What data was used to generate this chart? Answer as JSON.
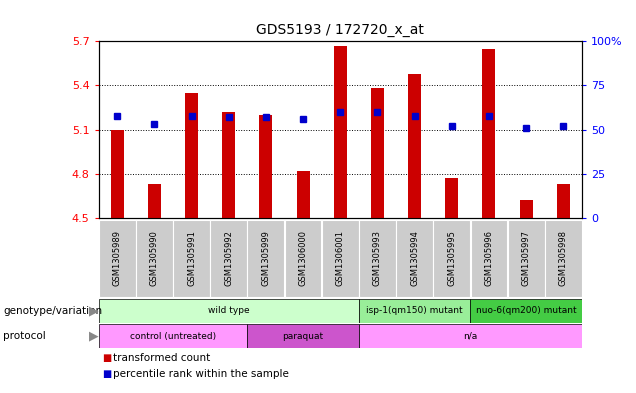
{
  "title": "GDS5193 / 172720_x_at",
  "samples": [
    "GSM1305989",
    "GSM1305990",
    "GSM1305991",
    "GSM1305992",
    "GSM1305999",
    "GSM1306000",
    "GSM1306001",
    "GSM1305993",
    "GSM1305994",
    "GSM1305995",
    "GSM1305996",
    "GSM1305997",
    "GSM1305998"
  ],
  "bar_values": [
    5.1,
    4.73,
    5.35,
    5.22,
    5.2,
    4.82,
    5.67,
    5.38,
    5.48,
    4.77,
    5.65,
    4.62,
    4.73
  ],
  "dot_values": [
    58,
    53,
    58,
    57,
    57,
    56,
    60,
    60,
    58,
    52,
    58,
    51,
    52
  ],
  "ymin": 4.5,
  "ymax": 5.7,
  "yticks": [
    4.5,
    4.8,
    5.1,
    5.4,
    5.7
  ],
  "right_yticks": [
    0,
    25,
    50,
    75,
    100
  ],
  "bar_color": "#cc0000",
  "dot_color": "#0000cc",
  "bar_base": 4.5,
  "genotype_groups": [
    {
      "label": "wild type",
      "start": 0,
      "end": 6,
      "color": "#ccffcc"
    },
    {
      "label": "isp-1(qm150) mutant",
      "start": 7,
      "end": 9,
      "color": "#99ee99"
    },
    {
      "label": "nuo-6(qm200) mutant",
      "start": 10,
      "end": 12,
      "color": "#44cc44"
    }
  ],
  "protocol_groups": [
    {
      "label": "control (untreated)",
      "start": 0,
      "end": 3,
      "color": "#ff99ff"
    },
    {
      "label": "paraquat",
      "start": 4,
      "end": 6,
      "color": "#cc55cc"
    },
    {
      "label": "n/a",
      "start": 7,
      "end": 12,
      "color": "#ff99ff"
    }
  ],
  "legend_items": [
    {
      "label": "transformed count",
      "color": "#cc0000"
    },
    {
      "label": "percentile rank within the sample",
      "color": "#0000cc"
    }
  ],
  "bg_color": "#ffffff",
  "plot_bg": "#ffffff",
  "grid_color": "#000000",
  "tick_bg": "#cccccc"
}
